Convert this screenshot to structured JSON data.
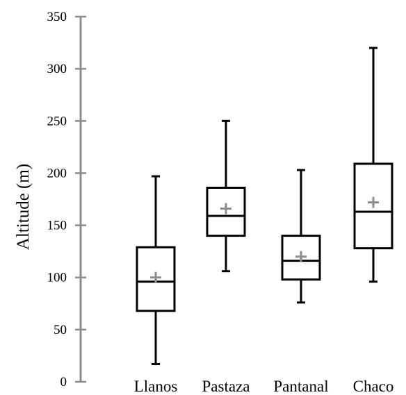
{
  "chart_data": {
    "type": "boxplot",
    "title": "",
    "xlabel": "",
    "ylabel": "Altitude (m)",
    "ylim": [
      0,
      350
    ],
    "yticks": [
      0,
      50,
      100,
      150,
      200,
      250,
      300,
      350
    ],
    "categories": [
      "Llanos",
      "Pastaza",
      "Pantanal",
      "Chaco"
    ],
    "boxes": [
      {
        "category": "Llanos",
        "min": 17,
        "q1": 68,
        "median": 96,
        "q3": 129,
        "max": 197,
        "mean": 100
      },
      {
        "category": "Pastaza",
        "min": 106,
        "q1": 140,
        "median": 159,
        "q3": 186,
        "max": 250,
        "mean": 166
      },
      {
        "category": "Pantanal",
        "min": 76,
        "q1": 98,
        "median": 116,
        "q3": 140,
        "max": 203,
        "mean": 120
      },
      {
        "category": "Chaco",
        "min": 96,
        "q1": 128,
        "median": 163,
        "q3": 209,
        "max": 320,
        "mean": 172
      }
    ],
    "grid": false,
    "legend": "none",
    "colors": {
      "axis": "#8c8c8c",
      "box": "#000000",
      "mean_marker": "#8c8c8c"
    }
  }
}
